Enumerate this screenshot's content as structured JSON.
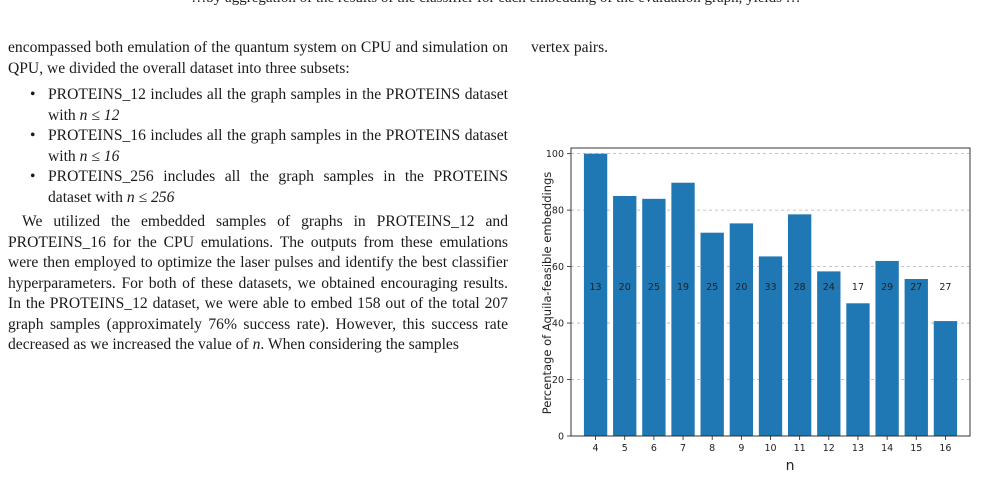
{
  "page": {
    "top_fragment": "…by aggregation of the results of the classifier for each embedding of the evaluation graph, yields …",
    "left_column": {
      "intro": "encompassed both emulation of the quantum system on CPU and simulation on QPU, we divided the overall dataset into three subsets:",
      "bullets": [
        {
          "name": "PROTEINS_12",
          "text_before": " includes all the graph samples in the PROTEINS dataset with ",
          "math": "n ≤ 12"
        },
        {
          "name": "PROTEINS_16",
          "text_before": " includes all the graph samples in the PROTEINS dataset with ",
          "math": "n ≤ 16"
        },
        {
          "name": "PROTEINS_256",
          "text_before": " includes all the graph samples in the PROTEINS dataset with ",
          "math": "n ≤ 256"
        }
      ],
      "bullet_symbol": "•",
      "paragraph_a": "We utilized the embedded samples of graphs in PROTEINS_12 and PROTEINS_16 for the CPU emulations. The outputs from these emulations were then employed to optimize the laser pulses and identify the best classifier hyperparameters. For both of these datasets, we obtained encouraging results. In the PROTEINS_12 dataset, we were able to embed 158 out of the total 207 graph samples (approximately 76% success rate). However, this success rate decreased as we increased the value of ",
      "paragraph_math": "n",
      "paragraph_b": ". When considering the samples"
    },
    "right_column": {
      "text": "vertex pairs."
    }
  },
  "chart_data": {
    "type": "bar",
    "categories": [
      "4",
      "5",
      "6",
      "7",
      "8",
      "9",
      "10",
      "11",
      "12",
      "13",
      "14",
      "15",
      "16"
    ],
    "values": [
      100,
      85,
      84,
      89.7,
      72,
      75.3,
      63.6,
      78.5,
      58.3,
      47,
      62,
      55.6,
      40.7
    ],
    "bar_labels": [
      "13",
      "20",
      "25",
      "19",
      "25",
      "20",
      "33",
      "28",
      "24",
      "17",
      "29",
      "27",
      "27"
    ],
    "xlabel": "n",
    "ylabel": "Percentage of Aquila-feasible embeddings",
    "ylim": [
      0,
      102
    ],
    "yticks": [
      0,
      20,
      40,
      60,
      80,
      100
    ],
    "grid": "horizontal dashed",
    "bar_color": "#1f77b4"
  }
}
